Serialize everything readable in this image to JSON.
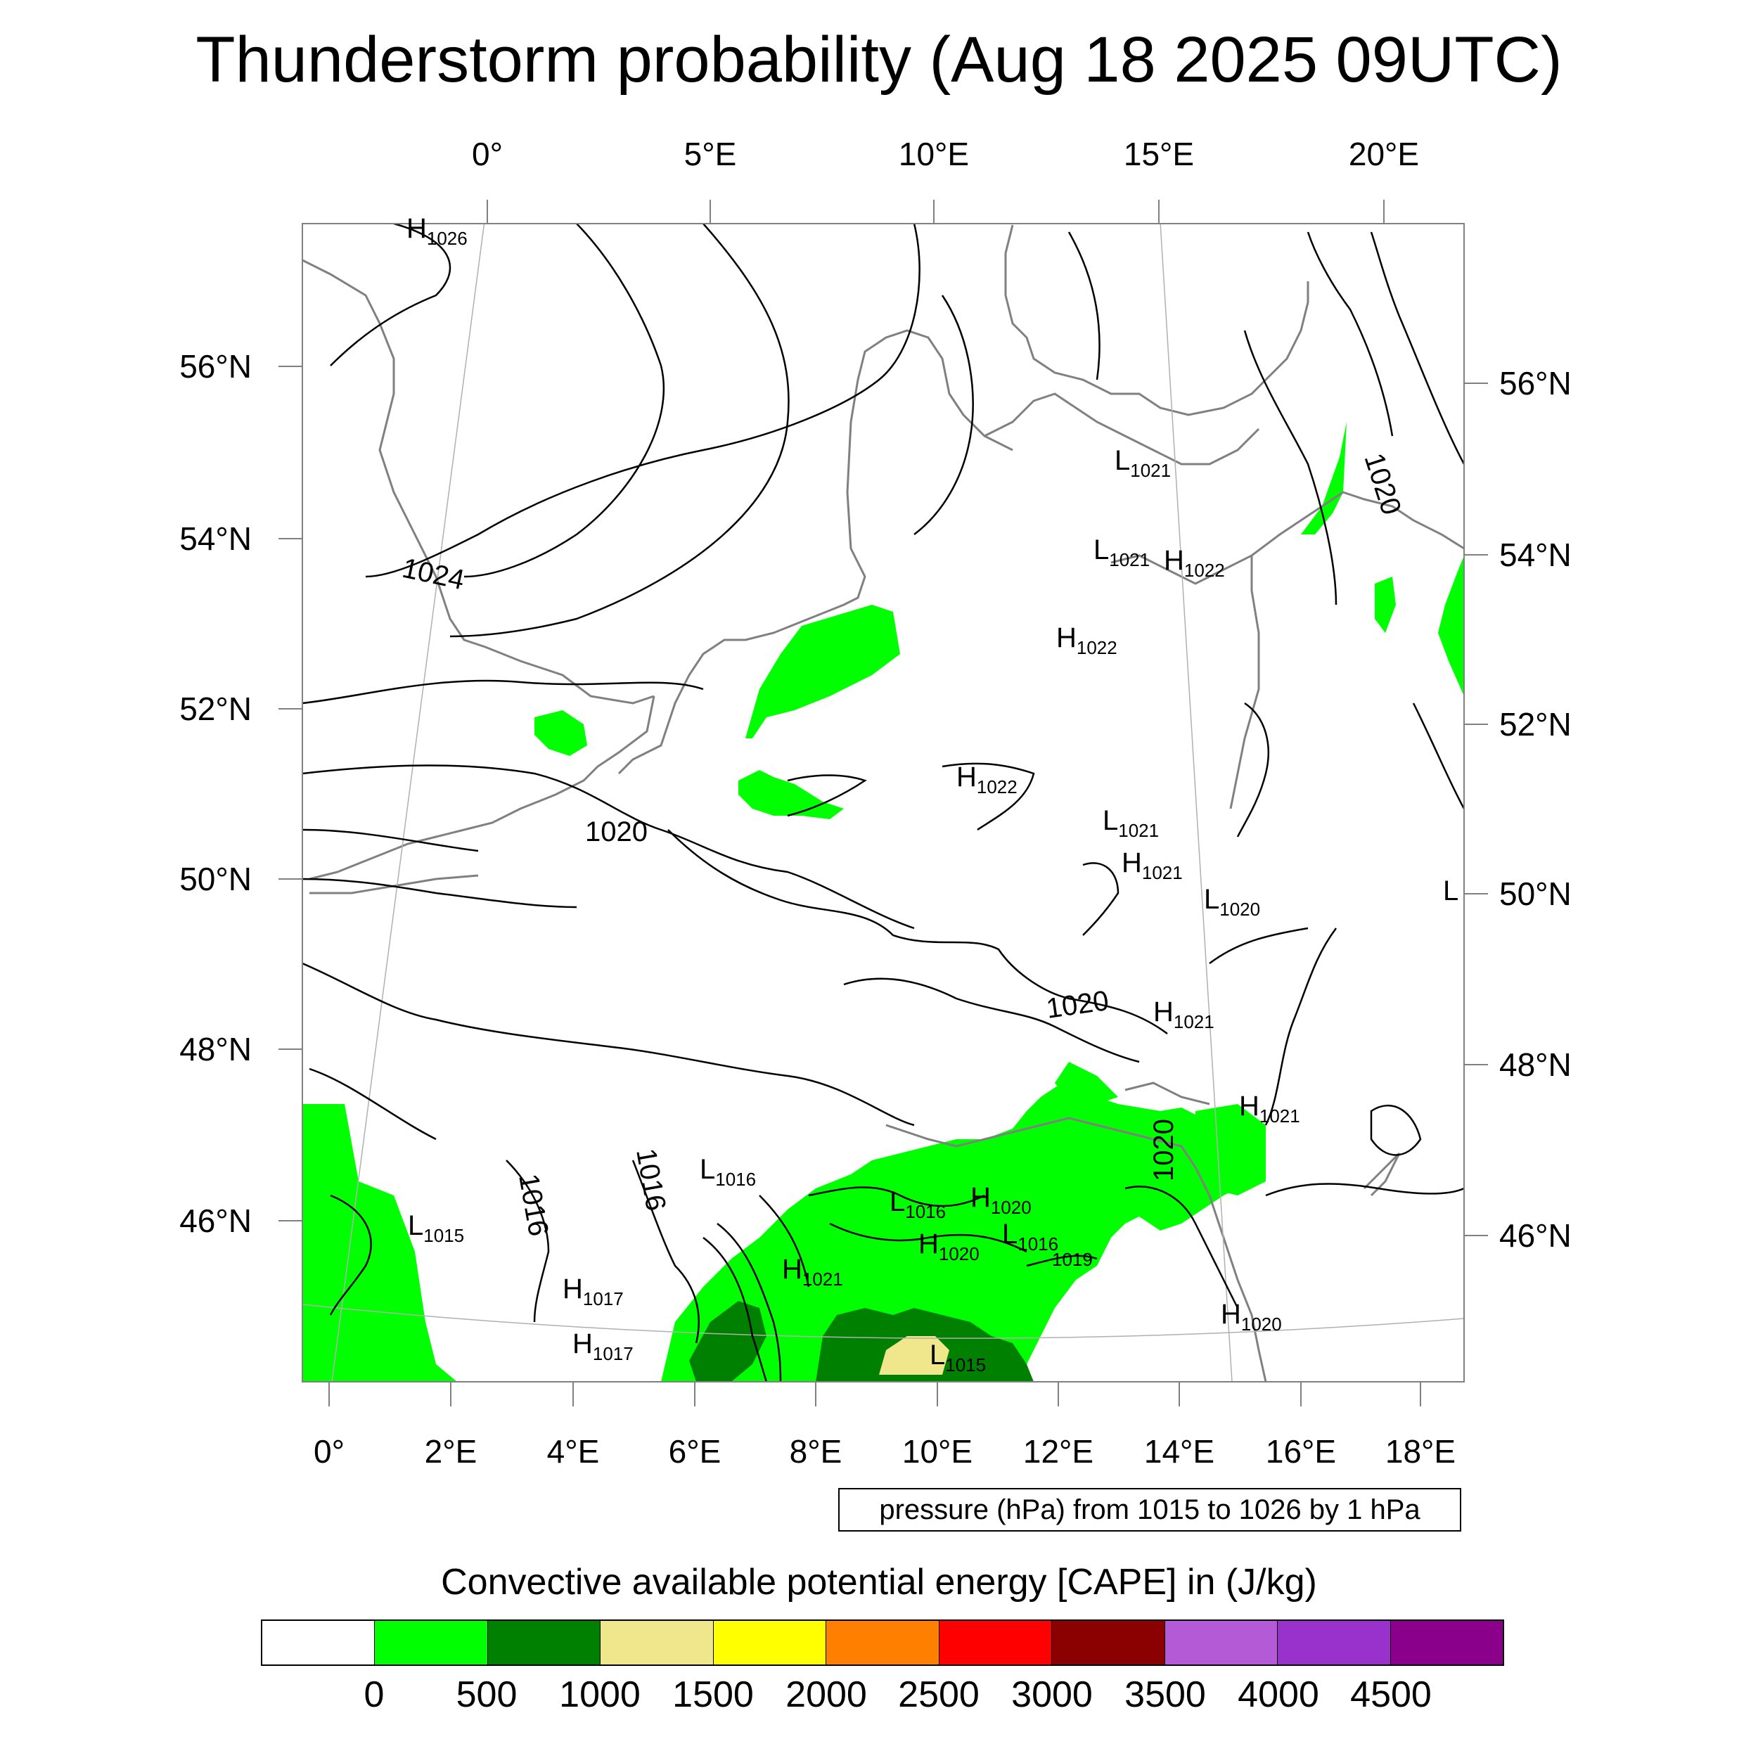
{
  "title": "Thunderstorm probability (Aug 18 2025 09UTC)",
  "top_lon_labels": [
    "0°",
    "5°E",
    "10°E",
    "15°E",
    "20°E"
  ],
  "bottom_lon_labels": [
    "0°",
    "2°E",
    "4°E",
    "6°E",
    "8°E",
    "10°E",
    "12°E",
    "14°E",
    "16°E",
    "18°E"
  ],
  "left_lat_labels": [
    "56°N",
    "54°N",
    "52°N",
    "50°N",
    "48°N",
    "46°N"
  ],
  "right_lat_labels": [
    "56°N",
    "54°N",
    "52°N",
    "50°N",
    "48°N",
    "46°N"
  ],
  "isobar_labels": [
    "1024",
    "1020",
    "1020",
    "1020",
    "1020",
    "1016",
    "1016"
  ],
  "pressure_centers": [
    {
      "type": "H",
      "value": "1026"
    },
    {
      "type": "L",
      "value": "1021"
    },
    {
      "type": "L",
      "value": "1021"
    },
    {
      "type": "H",
      "value": "1022"
    },
    {
      "type": "H",
      "value": "1022"
    },
    {
      "type": "H",
      "value": "1022"
    },
    {
      "type": "L",
      "value": "1021"
    },
    {
      "type": "H",
      "value": "1021"
    },
    {
      "type": "L",
      "value": "1020"
    },
    {
      "type": "H",
      "value": "1021"
    },
    {
      "type": "H",
      "value": "1021"
    },
    {
      "type": "L",
      "value": "1016"
    },
    {
      "type": "L",
      "value": "1016"
    },
    {
      "type": "H",
      "value": "1020"
    },
    {
      "type": "H",
      "value": "1020"
    },
    {
      "type": "L",
      "value": "1016"
    },
    {
      "type": "H",
      "value": "1021"
    },
    {
      "type": "L",
      "value": "1015"
    },
    {
      "type": "H",
      "value": "1017"
    },
    {
      "type": "H",
      "value": "1017"
    },
    {
      "type": "L",
      "value": "1015"
    },
    {
      "type": "H",
      "value": "1020"
    },
    {
      "type": "",
      "value": "1019"
    },
    {
      "type": "L",
      "value": ""
    }
  ],
  "pressure_note": "pressure (hPa) from 1015 to 1026 by 1 hPa",
  "colorbar": {
    "title": "Convective available potential energy [CAPE] in (J/kg)",
    "colors": [
      "#ffffff",
      "#00ff00",
      "#008000",
      "#f0e68c",
      "#ffff00",
      "#ff8000",
      "#ff0000",
      "#8b0000",
      "#b55ad6",
      "#9932cc",
      "#8b008b"
    ],
    "ticks": [
      "0",
      "500",
      "1000",
      "1500",
      "2000",
      "2500",
      "3000",
      "3500",
      "4000",
      "4500"
    ]
  }
}
